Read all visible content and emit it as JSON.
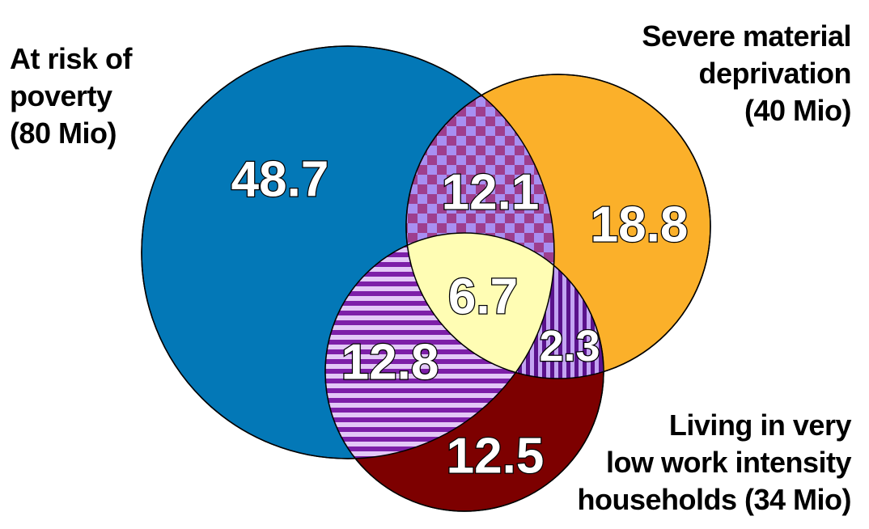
{
  "sets": {
    "poverty": {
      "label_lines": [
        "At risk of",
        "poverty",
        "(80 Mio)"
      ],
      "color": "#0378b7"
    },
    "deprivation": {
      "label_lines": [
        "Severe material",
        "deprivation",
        "(40 Mio)"
      ],
      "color": "#fbb02a"
    },
    "work": {
      "label_lines": [
        "Living in very",
        "low work intensity",
        "households (34 Mio)"
      ],
      "color": "#7d0000"
    }
  },
  "regions": {
    "poverty_only": {
      "value": "48.7"
    },
    "poverty_deprivation": {
      "value": "12.1",
      "pattern": "checkerboard",
      "colors": [
        "#9e3e8e",
        "#a88ff2"
      ]
    },
    "deprivation_only": {
      "value": "18.8"
    },
    "all_three": {
      "value": "6.7",
      "color": "#fffdb4"
    },
    "poverty_work": {
      "value": "12.8",
      "pattern": "horizontal-stripes",
      "colors": [
        "#7d1fa8",
        "#e3c8f7"
      ]
    },
    "deprivation_work": {
      "value": "2.3",
      "pattern": "vertical-stripes",
      "colors": [
        "#5a128c",
        "#c3a4f2"
      ]
    },
    "work_only": {
      "value": "12.5"
    }
  }
}
